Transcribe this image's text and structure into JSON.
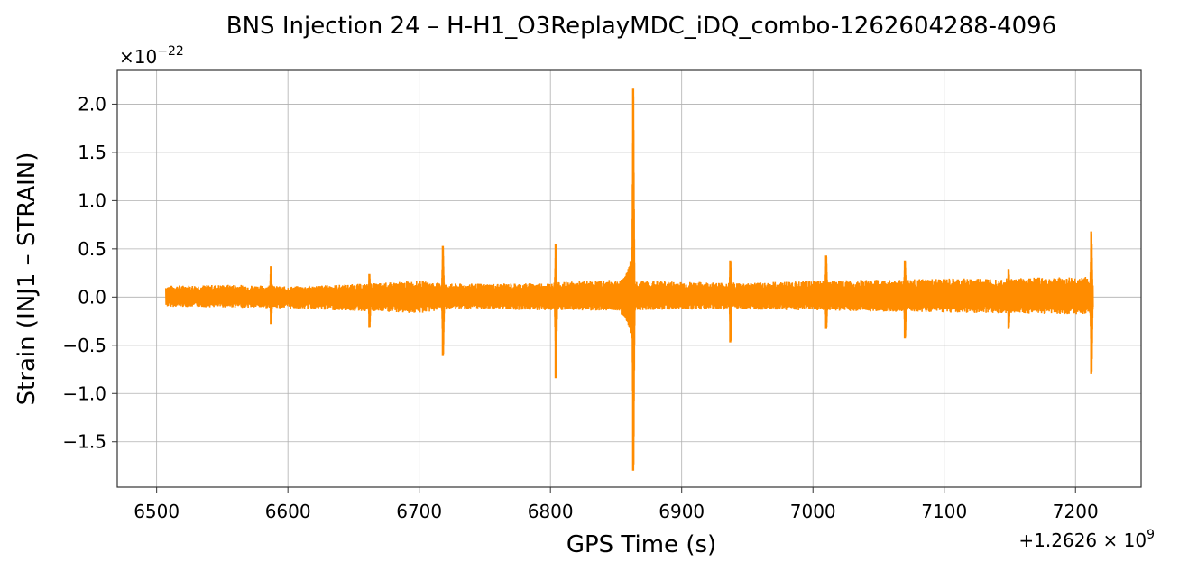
{
  "chart_data": {
    "type": "line",
    "title": "BNS Injection 24 – H-H1_O3ReplayMDC_iDQ_combo-1262604288-4096",
    "xlabel": "GPS Time (s)",
    "ylabel": "Strain (INJ1 – STRAIN)",
    "x_offset_label_base": "+1.2626",
    "x_offset_label_mult": " × 10",
    "x_offset_label_exp": "9",
    "y_multiplier_base": "×10",
    "y_multiplier_exp": "−22",
    "xlim": [
      6470,
      7250
    ],
    "ylim": [
      -1.97,
      2.35
    ],
    "grid": true,
    "x_ticks": [
      6500,
      6600,
      6700,
      6800,
      6900,
      7000,
      7100,
      7200
    ],
    "x_tick_labels": [
      "6500",
      "6600",
      "6700",
      "6800",
      "6900",
      "7000",
      "7100",
      "7200"
    ],
    "y_ticks": [
      -1.5,
      -1.0,
      -0.5,
      0.0,
      0.5,
      1.0,
      1.5,
      2.0
    ],
    "y_tick_labels": [
      "−1.5",
      "−1.0",
      "−0.5",
      "0.0",
      "0.5",
      "1.0",
      "1.5",
      "2.0"
    ],
    "line_color": "#ff8c00",
    "series": [
      {
        "x_range": [
          6507,
          7213
        ],
        "noise_envelope": [
          [
            6507,
            0.12,
            -0.1
          ],
          [
            6560,
            0.13,
            -0.11
          ],
          [
            6600,
            0.11,
            -0.12
          ],
          [
            6660,
            0.14,
            -0.15
          ],
          [
            6700,
            0.17,
            -0.17
          ],
          [
            6720,
            0.14,
            -0.13
          ],
          [
            6760,
            0.14,
            -0.13
          ],
          [
            6800,
            0.15,
            -0.14
          ],
          [
            6850,
            0.18,
            -0.14
          ],
          [
            6900,
            0.16,
            -0.13
          ],
          [
            6950,
            0.15,
            -0.13
          ],
          [
            7000,
            0.17,
            -0.14
          ],
          [
            7050,
            0.18,
            -0.15
          ],
          [
            7100,
            0.19,
            -0.16
          ],
          [
            7150,
            0.2,
            -0.17
          ],
          [
            7213,
            0.21,
            -0.18
          ]
        ],
        "glitches": [
          {
            "x": 6587,
            "max": 0.32,
            "min": -0.28
          },
          {
            "x": 6662,
            "max": 0.24,
            "min": -0.32
          },
          {
            "x": 6718,
            "max": 0.53,
            "min": -0.61
          },
          {
            "x": 6804,
            "max": 0.55,
            "min": -0.84
          },
          {
            "x": 6863,
            "max": 2.16,
            "min": -1.8
          },
          {
            "x": 6937,
            "max": 0.38,
            "min": -0.47
          },
          {
            "x": 7010,
            "max": 0.43,
            "min": -0.33
          },
          {
            "x": 7070,
            "max": 0.38,
            "min": -0.43
          },
          {
            "x": 7149,
            "max": 0.29,
            "min": -0.33
          },
          {
            "x": 7212,
            "max": 0.68,
            "min": -0.8
          }
        ]
      }
    ]
  }
}
